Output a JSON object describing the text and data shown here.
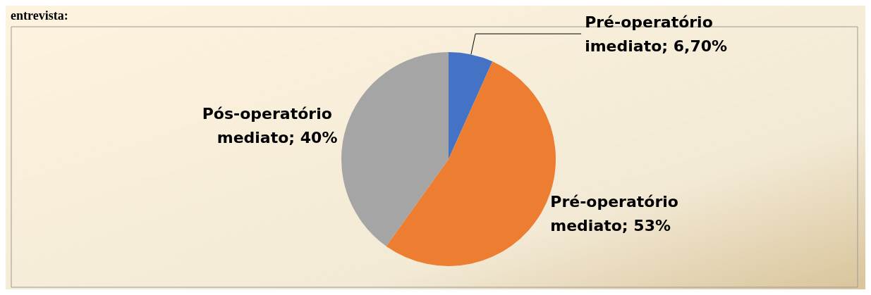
{
  "chart_data": {
    "type": "pie",
    "title": "entrevista:",
    "categories": [
      "Pré-operatório imediato",
      "Pré-operatório mediato",
      "Pós-operatório mediato"
    ],
    "values": [
      6.7,
      53,
      40
    ],
    "value_labels": [
      "6,70%",
      "53%",
      "40%"
    ],
    "colors": [
      "#4472c4",
      "#ed7d31",
      "#a5a5a5"
    ],
    "legend": false
  }
}
